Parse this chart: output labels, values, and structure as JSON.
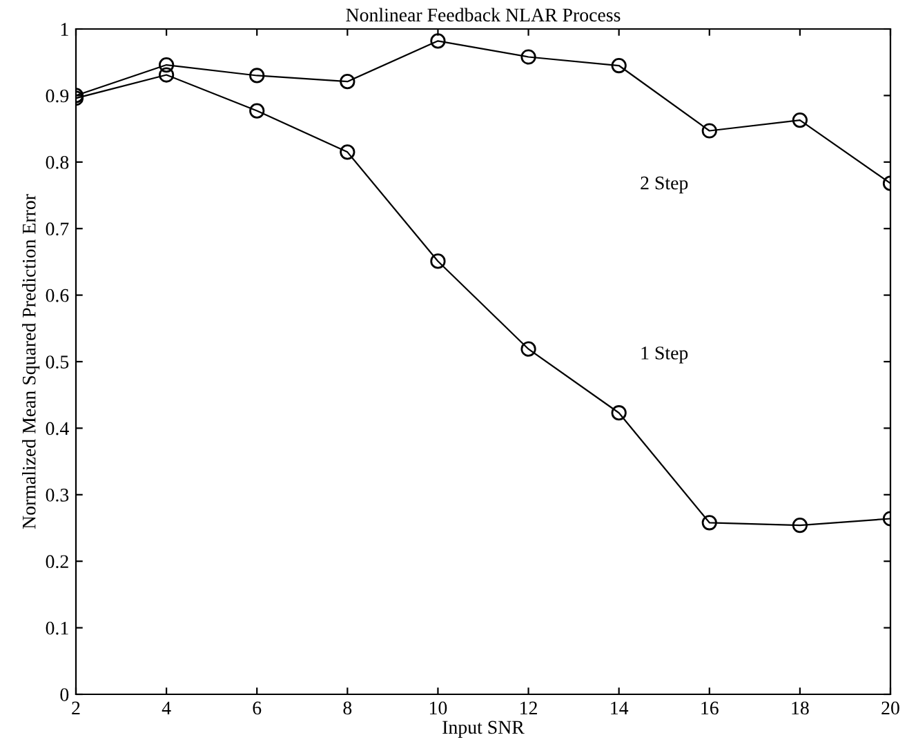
{
  "chart_data": {
    "type": "line",
    "title": "Nonlinear Feedback NLAR Process",
    "xlabel": "Input SNR",
    "ylabel": "Normalized Mean Squared Prediction Error",
    "x": [
      2,
      4,
      6,
      8,
      10,
      12,
      14,
      16,
      18,
      20
    ],
    "series": [
      {
        "name": "2 Step",
        "color": "#000000",
        "values": [
          0.9,
          0.946,
          0.93,
          0.921,
          0.982,
          0.958,
          0.945,
          0.847,
          0.863,
          0.768
        ]
      },
      {
        "name": "1 Step",
        "color": "#000000",
        "values": [
          0.896,
          0.931,
          0.877,
          0.815,
          0.651,
          0.519,
          0.423,
          0.258,
          0.254,
          0.264
        ]
      }
    ],
    "marker": "circle",
    "line_style": "solid",
    "grid": false,
    "legend": false,
    "xlim": [
      2,
      20
    ],
    "xticks": [
      2,
      4,
      6,
      8,
      10,
      12,
      14,
      16,
      18,
      20
    ],
    "ylim": [
      0,
      1
    ],
    "yticks": [
      0,
      0.1,
      0.2,
      0.3,
      0.4,
      0.5,
      0.6,
      0.7,
      0.8,
      0.9,
      1
    ]
  }
}
